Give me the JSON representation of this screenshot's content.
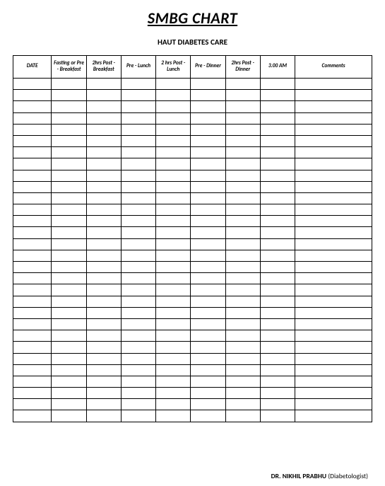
{
  "title": "SMBG CHART",
  "subtitle": "HAUT DIABETES CARE",
  "table": {
    "type": "table",
    "columns": [
      {
        "label": "DATE",
        "class": "col-date"
      },
      {
        "label": "Fasting or Pre - Breakfast",
        "class": "col-narrow"
      },
      {
        "label": "2hrs Post - Breakfast",
        "class": "col-narrow"
      },
      {
        "label": "Pre - Lunch",
        "class": "col-narrow"
      },
      {
        "label": "2 hrs Post - Lunch",
        "class": "col-narrow"
      },
      {
        "label": "Pre - Dinner",
        "class": "col-narrow"
      },
      {
        "label": "2hrs Post - Dinner",
        "class": "col-narrow"
      },
      {
        "label": "3.00 AM",
        "class": "col-narrow"
      },
      {
        "label": "Comments",
        "class": "col-wide"
      }
    ],
    "row_count": 30,
    "border_color": "#000000",
    "background_color": "#ffffff"
  },
  "footer": {
    "name": "DR. NIKHIL PRABHU",
    "role": "(Diabetologist)"
  }
}
